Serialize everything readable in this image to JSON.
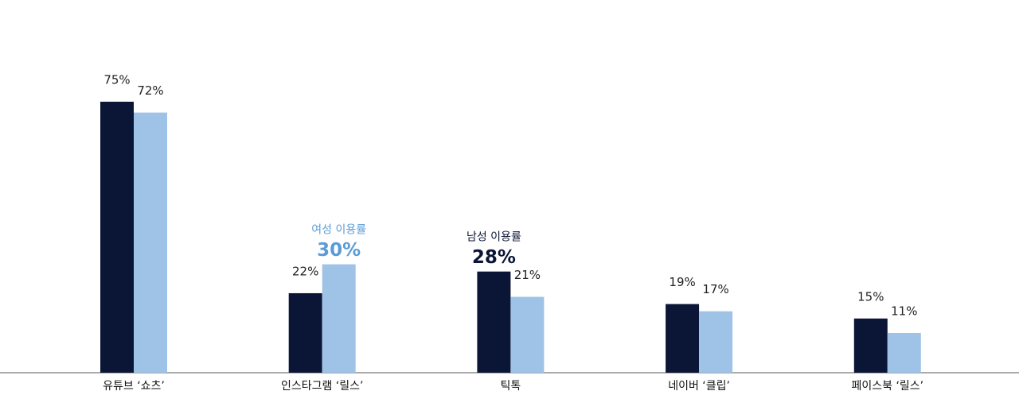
{
  "chart_data": {
    "type": "bar",
    "categories": [
      "유튜브 ‘쇼츠’",
      "인스타그램 ‘릴스’",
      "틱톡",
      "네이버 ‘클립’",
      "페이스북 ‘릴스’"
    ],
    "series": [
      {
        "name": "남성 이용률",
        "color": "#0b1535",
        "label_color": "#0b1535",
        "highlight": 2,
        "values": [
          75,
          22,
          28,
          19,
          15
        ],
        "value_labels": [
          "75%",
          "22%",
          "28%",
          "19%",
          "15%"
        ]
      },
      {
        "name": "여성 이용률",
        "color": "#9fc3e6",
        "label_color": "#5b9bd5",
        "highlight": 1,
        "values": [
          72,
          30,
          21,
          17,
          11
        ],
        "value_labels": [
          "72%",
          "30%",
          "21%",
          "17%",
          "11%"
        ]
      }
    ],
    "ylim": [
      0,
      75
    ]
  }
}
